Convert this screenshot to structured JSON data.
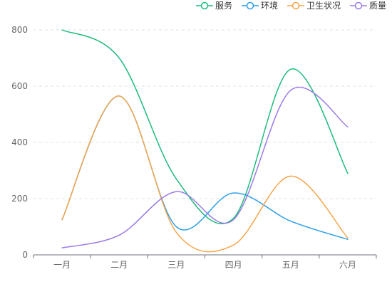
{
  "chart_data": {
    "type": "line",
    "smooth": true,
    "categories": [
      "一月",
      "二月",
      "三月",
      "四月",
      "五月",
      "六月"
    ],
    "ylim": [
      0,
      800
    ],
    "yticks": [
      0,
      200,
      400,
      600,
      800
    ],
    "grid": "horizontal-dashed",
    "legend_position": "top-right",
    "series": [
      {
        "name": "服务",
        "color": "#1dbb7c",
        "values": [
          800,
          700,
          270,
          130,
          660,
          290
        ]
      },
      {
        "name": "环境",
        "color": "#2c9fe8",
        "values": [
          125,
          565,
          100,
          220,
          120,
          55
        ]
      },
      {
        "name": "卫生状况",
        "color": "#f6a54a",
        "values": [
          125,
          565,
          80,
          35,
          280,
          60
        ]
      },
      {
        "name": "质量",
        "color": "#9b7be6",
        "values": [
          25,
          70,
          225,
          125,
          585,
          455
        ]
      }
    ]
  }
}
